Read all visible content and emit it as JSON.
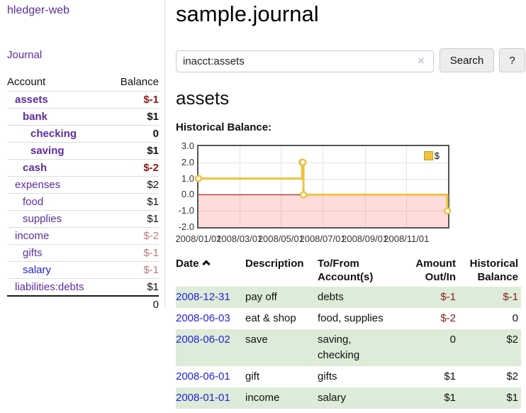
{
  "sidebar": {
    "app_title": "hledger-web",
    "journal_label": "Journal",
    "accounts_table": {
      "headers": {
        "account": "Account",
        "balance": "Balance"
      },
      "rows": [
        {
          "name": "assets",
          "depth": 1,
          "bold": true,
          "link_style": "visited",
          "balance": "$-1",
          "balance_style": "neg"
        },
        {
          "name": "bank",
          "depth": 2,
          "bold": true,
          "link_style": "visited",
          "balance": "$1",
          "balance_style": "pos"
        },
        {
          "name": "checking",
          "depth": 3,
          "bold": true,
          "link_style": "visited",
          "balance": "0",
          "balance_style": "pos"
        },
        {
          "name": "saving",
          "depth": 3,
          "bold": true,
          "link_style": "visited",
          "balance": "$1",
          "balance_style": "pos"
        },
        {
          "name": "cash",
          "depth": 2,
          "bold": true,
          "link_style": "visited",
          "balance": "$-2",
          "balance_style": "neg"
        },
        {
          "name": "expenses",
          "depth": 1,
          "bold": false,
          "link_style": "visited",
          "balance": "$2",
          "balance_style": "pos"
        },
        {
          "name": "food",
          "depth": 2,
          "bold": false,
          "link_style": "visited",
          "balance": "$1",
          "balance_style": "pos"
        },
        {
          "name": "supplies",
          "depth": 2,
          "bold": false,
          "link_style": "visited",
          "balance": "$1",
          "balance_style": "pos"
        },
        {
          "name": "income",
          "depth": 1,
          "bold": false,
          "link_style": "visited",
          "balance": "$-2",
          "balance_style": "neg_light"
        },
        {
          "name": "gifts",
          "depth": 2,
          "bold": false,
          "link_style": "visited",
          "balance": "$-1",
          "balance_style": "neg_light"
        },
        {
          "name": "salary",
          "depth": 2,
          "bold": false,
          "link_style": "unvisited",
          "balance": "$-1",
          "balance_style": "neg_light"
        },
        {
          "name": "liabilities:debts",
          "depth": 1,
          "bold": false,
          "link_style": "visited",
          "balance": "$1",
          "balance_style": "pos"
        }
      ],
      "total": "0"
    }
  },
  "header": {
    "title": "sample.journal"
  },
  "search": {
    "value": "inacct:assets",
    "clear_icon": "×",
    "button_label": "Search",
    "help_label": "?"
  },
  "main": {
    "section_title": "assets",
    "chart_label": "Historical Balance:"
  },
  "chart_data": {
    "type": "line",
    "step": true,
    "title": "Historical Balance",
    "legend": {
      "label": "$",
      "color": "#EDC240"
    },
    "ylim": [
      -2,
      3
    ],
    "xlim_days": [
      0,
      366
    ],
    "grid": true,
    "negative_region_fill": "#ffdddd",
    "zero_line_color": "#aa0000",
    "marker_fill": "#ffffff",
    "y_ticks": [
      {
        "label": "3.0",
        "value": 3
      },
      {
        "label": "2.0",
        "value": 2
      },
      {
        "label": "1.0",
        "value": 1
      },
      {
        "label": "0.0",
        "value": 0
      },
      {
        "label": "-1.0",
        "value": -1
      },
      {
        "label": "-2.0",
        "value": -2
      }
    ],
    "x_ticks": [
      {
        "label": "2008/01/01",
        "day": 0
      },
      {
        "label": "2008/03/01",
        "day": 60
      },
      {
        "label": "2008/05/01",
        "day": 121
      },
      {
        "label": "2008/07/01",
        "day": 182
      },
      {
        "label": "2008/09/01",
        "day": 244
      },
      {
        "label": "2008/11/01",
        "day": 305
      }
    ],
    "series": [
      {
        "name": "$",
        "color": "#EDC240",
        "points": [
          {
            "x": "2008/01/01",
            "day": 0,
            "y": 1
          },
          {
            "x": "2008/06/01",
            "day": 152,
            "y": 2
          },
          {
            "x": "2008/06/02",
            "day": 153,
            "y": 2
          },
          {
            "x": "2008/06/03",
            "day": 154,
            "y": 0
          },
          {
            "x": "2008/12/31",
            "day": 365,
            "y": -1
          }
        ]
      }
    ]
  },
  "transactions_table": {
    "headers": {
      "date": "Date",
      "sort_icon": "chevron-up-icon",
      "description": "Description",
      "accounts": "To/From\nAccount(s)",
      "amount": "Amount\nOut/In",
      "balance": "Historical\nBalance"
    },
    "rows": [
      {
        "date": "2008-12-31",
        "description": "pay off",
        "accounts": "debts",
        "amount": "$-1",
        "amount_style": "neg",
        "balance": "$-1",
        "balance_style": "neg",
        "shaded": true
      },
      {
        "date": "2008-06-03",
        "description": "eat & shop",
        "accounts": "food, supplies",
        "amount": "$-2",
        "amount_style": "neg",
        "balance": "0",
        "balance_style": "pos",
        "shaded": false
      },
      {
        "date": "2008-06-02",
        "description": "save",
        "accounts": "saving, checking",
        "amount": "0",
        "amount_style": "pos",
        "balance": "$2",
        "balance_style": "pos",
        "shaded": true
      },
      {
        "date": "2008-06-01",
        "description": "gift",
        "accounts": "gifts",
        "amount": "$1",
        "amount_style": "pos",
        "balance": "$2",
        "balance_style": "pos",
        "shaded": false
      },
      {
        "date": "2008-01-01",
        "description": "income",
        "accounts": "salary",
        "amount": "$1",
        "amount_style": "pos",
        "balance": "$1",
        "balance_style": "pos",
        "shaded": true
      }
    ]
  }
}
